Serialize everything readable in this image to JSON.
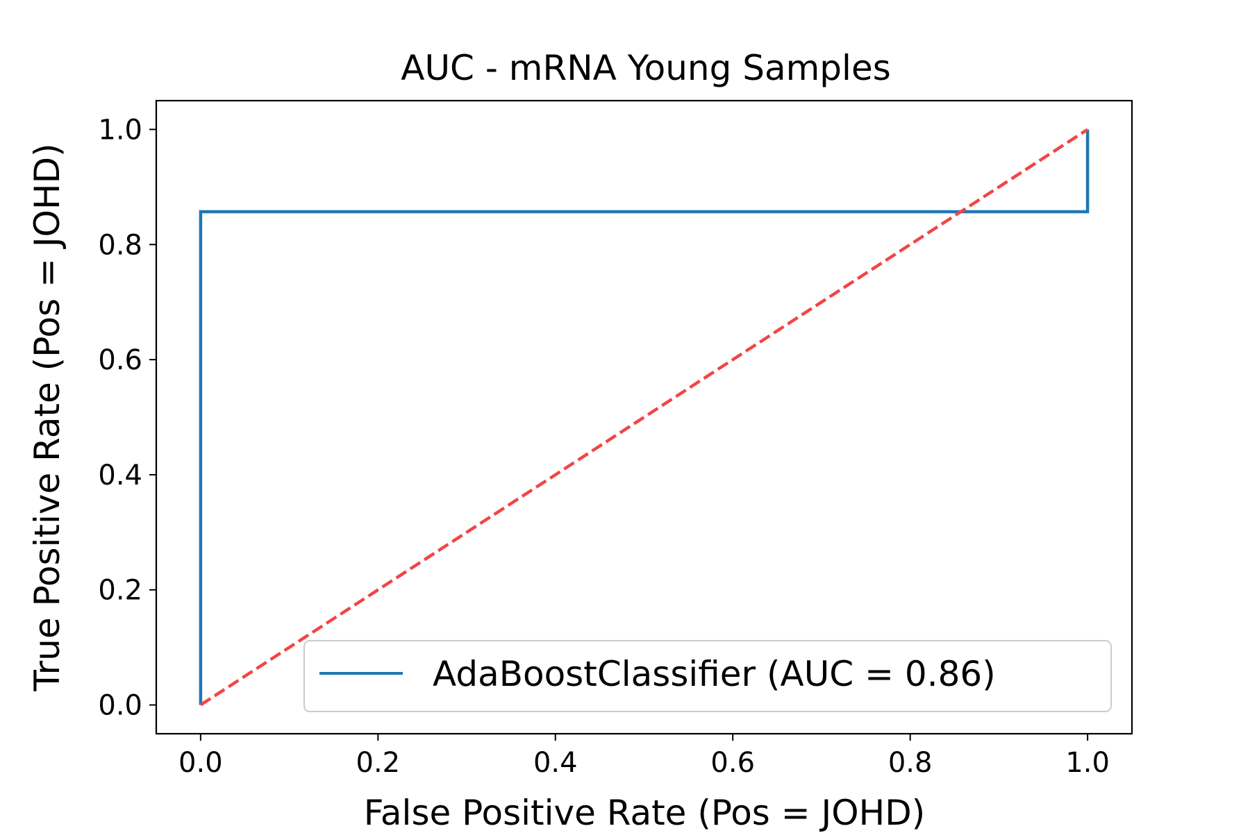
{
  "chart_data": {
    "type": "line",
    "title": "AUC - mRNA Young Samples",
    "xlabel": "False Positive Rate (Pos = JOHD)",
    "ylabel": "True Positive Rate (Pos = JOHD)",
    "xlim": [
      -0.05,
      1.05
    ],
    "ylim": [
      -0.05,
      1.05
    ],
    "xticks": [
      0.0,
      0.2,
      0.4,
      0.6,
      0.8,
      1.0
    ],
    "yticks": [
      0.0,
      0.2,
      0.4,
      0.6,
      0.8,
      1.0
    ],
    "xtick_labels": [
      "0.0",
      "0.2",
      "0.4",
      "0.6",
      "0.8",
      "1.0"
    ],
    "ytick_labels": [
      "0.0",
      "0.2",
      "0.4",
      "0.6",
      "0.8",
      "1.0"
    ],
    "grid": false,
    "legend_position": "lower-right",
    "series": [
      {
        "name": "AdaBoostClassifier (AUC = 0.86)",
        "color": "#1f77b4",
        "style": "solid",
        "x": [
          0.0,
          0.0,
          1.0,
          1.0
        ],
        "y": [
          0.0,
          0.857,
          0.857,
          1.0
        ]
      },
      {
        "color": "#f24545",
        "style": "dashed",
        "x": [
          0.0,
          1.0
        ],
        "y": [
          0.0,
          1.0
        ]
      }
    ]
  }
}
